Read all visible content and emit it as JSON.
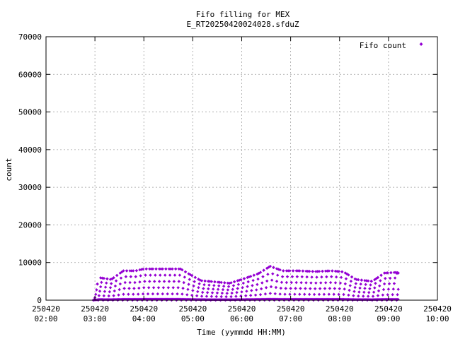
{
  "chart_data": {
    "type": "scatter",
    "title": "Fifo filling for MEX",
    "subtitle": "E_RT20250420024028.sfduZ",
    "xlabel": "Time (yymmdd HH:MM)",
    "ylabel": "count",
    "xlim": [
      "250420 02:00",
      "250420 10:00"
    ],
    "ylim": [
      0,
      70000
    ],
    "x_ticks": [
      {
        "date": "250420",
        "time": "02:00"
      },
      {
        "date": "250420",
        "time": "03:00"
      },
      {
        "date": "250420",
        "time": "04:00"
      },
      {
        "date": "250420",
        "time": "05:00"
      },
      {
        "date": "250420",
        "time": "06:00"
      },
      {
        "date": "250420",
        "time": "07:00"
      },
      {
        "date": "250420",
        "time": "08:00"
      },
      {
        "date": "250420",
        "time": "09:00"
      },
      {
        "date": "250420",
        "time": "10:00"
      }
    ],
    "y_ticks": [
      "0",
      "10000",
      "20000",
      "30000",
      "40000",
      "50000",
      "60000",
      "70000"
    ],
    "grid": true,
    "legend_position": "top-right",
    "series": [
      {
        "name": "Fifo count",
        "color": "#9400d3",
        "marker": "diamond",
        "envelope": [
          {
            "x": "250420 02:58",
            "y": 0
          },
          {
            "x": "250420 03:05",
            "y": 6000
          },
          {
            "x": "250420 03:20",
            "y": 5500
          },
          {
            "x": "250420 03:35",
            "y": 7800
          },
          {
            "x": "250420 03:50",
            "y": 7800
          },
          {
            "x": "250420 04:00",
            "y": 8300
          },
          {
            "x": "250420 04:20",
            "y": 8300
          },
          {
            "x": "250420 04:45",
            "y": 8300
          },
          {
            "x": "250420 04:55",
            "y": 7000
          },
          {
            "x": "250420 05:10",
            "y": 5200
          },
          {
            "x": "250420 05:30",
            "y": 4800
          },
          {
            "x": "250420 05:45",
            "y": 4500
          },
          {
            "x": "250420 06:00",
            "y": 5500
          },
          {
            "x": "250420 06:20",
            "y": 7000
          },
          {
            "x": "250420 06:35",
            "y": 9000
          },
          {
            "x": "250420 06:50",
            "y": 7800
          },
          {
            "x": "250420 07:10",
            "y": 7800
          },
          {
            "x": "250420 07:30",
            "y": 7600
          },
          {
            "x": "250420 07:50",
            "y": 7800
          },
          {
            "x": "250420 08:05",
            "y": 7500
          },
          {
            "x": "250420 08:20",
            "y": 5500
          },
          {
            "x": "250420 08:40",
            "y": 5000
          },
          {
            "x": "250420 08:55",
            "y": 7200
          },
          {
            "x": "250420 09:10",
            "y": 7400
          },
          {
            "x": "250420 09:12",
            "y": 7200
          }
        ]
      }
    ]
  }
}
